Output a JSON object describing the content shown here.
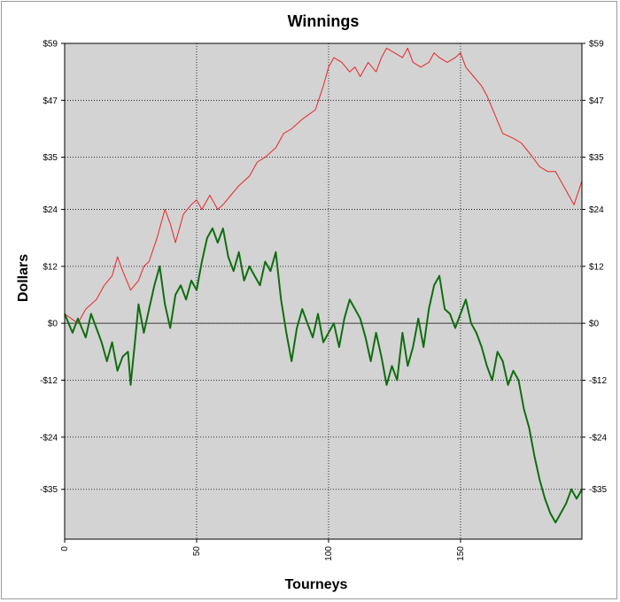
{
  "chart_data": {
    "type": "line",
    "title": "Winnings",
    "xlabel": "Tourneys",
    "ylabel": "Dollars",
    "xlim": [
      0,
      196
    ],
    "ylim": [
      -45.5,
      59
    ],
    "x_ticks": [
      0,
      50,
      100,
      150
    ],
    "x_tick_labels": [
      "0",
      "50",
      "100",
      "150"
    ],
    "y_ticks": [
      59,
      47,
      35,
      24,
      12,
      0,
      -12,
      -24,
      -35
    ],
    "y_tick_labels": [
      "$59",
      "$47",
      "$35",
      "$24",
      "$12",
      "$0",
      "-$12",
      "-$24",
      "-$35"
    ],
    "grid": true,
    "zero_line": true,
    "plot_background": "#d3d3d3",
    "series": [
      {
        "color": "#e8262a",
        "x": [
          0,
          5,
          8,
          12,
          15,
          18,
          20,
          22,
          25,
          28,
          30,
          32,
          35,
          38,
          40,
          42,
          45,
          48,
          50,
          52,
          55,
          58,
          60,
          63,
          66,
          70,
          73,
          76,
          80,
          83,
          86,
          90,
          95,
          98,
          100,
          102,
          105,
          108,
          110,
          112,
          115,
          118,
          120,
          122,
          125,
          128,
          130,
          132,
          135,
          138,
          140,
          142,
          145,
          148,
          150,
          152,
          155,
          158,
          160,
          163,
          166,
          170,
          173,
          176,
          180,
          183,
          186,
          190,
          193,
          196
        ],
        "y": [
          2,
          0,
          3,
          5,
          8,
          10,
          14,
          11,
          7,
          9,
          12,
          13,
          18,
          24,
          21,
          17,
          23,
          25,
          26,
          24,
          27,
          24,
          25,
          27,
          29,
          31,
          34,
          35,
          37,
          40,
          41,
          43,
          45,
          50,
          54,
          56,
          55,
          53,
          54,
          52,
          55,
          53,
          56,
          58,
          57,
          56,
          58,
          55,
          54,
          55,
          57,
          56,
          55,
          56,
          57,
          54,
          52,
          50,
          48,
          44,
          40,
          39,
          38,
          36,
          33,
          32,
          32,
          28,
          25,
          30
        ]
      },
      {
        "color": "#0f6e0f",
        "x": [
          0,
          3,
          5,
          8,
          10,
          12,
          14,
          16,
          18,
          20,
          22,
          24,
          25,
          27,
          28,
          30,
          32,
          34,
          36,
          38,
          40,
          42,
          44,
          46,
          48,
          50,
          52,
          54,
          56,
          58,
          60,
          62,
          64,
          66,
          68,
          70,
          72,
          74,
          76,
          78,
          80,
          82,
          84,
          86,
          88,
          90,
          92,
          94,
          96,
          98,
          100,
          102,
          104,
          106,
          108,
          110,
          112,
          114,
          116,
          118,
          120,
          122,
          124,
          126,
          128,
          130,
          132,
          134,
          136,
          138,
          140,
          142,
          144,
          146,
          148,
          150,
          152,
          154,
          156,
          158,
          160,
          162,
          164,
          166,
          168,
          170,
          172,
          174,
          176,
          178,
          180,
          182,
          184,
          186,
          188,
          190,
          192,
          194,
          196
        ],
        "y": [
          2,
          -2,
          1,
          -3,
          2,
          -1,
          -4,
          -8,
          -4,
          -10,
          -7,
          -6,
          -13,
          -2,
          4,
          -2,
          3,
          8,
          12,
          4,
          -1,
          6,
          8,
          5,
          9,
          7,
          13,
          18,
          20,
          17,
          20,
          14,
          11,
          15,
          9,
          12,
          10,
          8,
          13,
          11,
          15,
          5,
          -2,
          -8,
          -1,
          3,
          0,
          -3,
          2,
          -4,
          -2,
          0,
          -5,
          1,
          5,
          3,
          1,
          -3,
          -8,
          -2,
          -7,
          -13,
          -9,
          -12,
          -2,
          -9,
          -5,
          1,
          -5,
          3,
          8,
          10,
          3,
          2,
          -1,
          2,
          5,
          0,
          -2,
          -5,
          -9,
          -12,
          -6,
          -8,
          -13,
          -10,
          -12,
          -18,
          -22,
          -28,
          -33,
          -37,
          -40,
          -42,
          -40,
          -38,
          -35,
          -37,
          -35
        ]
      }
    ]
  }
}
